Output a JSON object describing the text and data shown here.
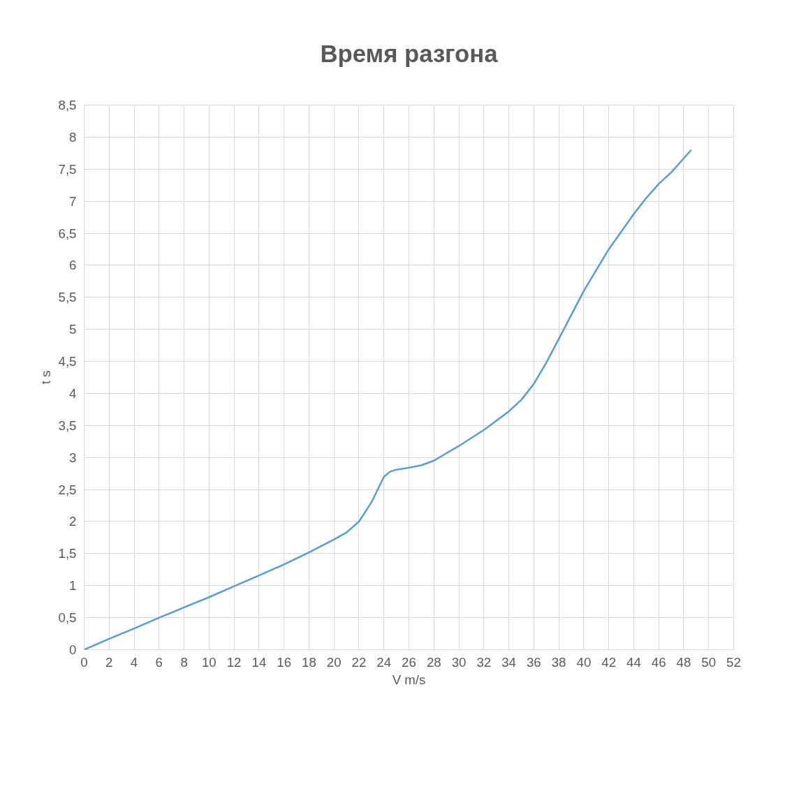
{
  "chart_data": {
    "type": "line",
    "title": "Время разгона",
    "xlabel": "V m/s",
    "ylabel": "t s",
    "x": [
      0,
      2,
      4,
      6,
      8,
      10,
      12,
      14,
      16,
      18,
      20,
      21,
      22,
      23,
      24,
      24.5,
      25,
      26,
      27,
      28,
      30,
      32,
      34,
      35,
      36,
      37,
      38,
      40,
      42,
      44,
      45,
      46,
      47,
      48.6
    ],
    "series": [
      {
        "color": "#5b9bd5",
        "values": [
          0,
          0.17,
          0.33,
          0.5,
          0.66,
          0.82,
          0.99,
          1.16,
          1.33,
          1.52,
          1.72,
          1.83,
          2.0,
          2.3,
          2.7,
          2.78,
          2.81,
          2.84,
          2.88,
          2.95,
          3.18,
          3.43,
          3.72,
          3.9,
          4.15,
          4.48,
          4.85,
          5.6,
          6.25,
          6.8,
          7.05,
          7.27,
          7.45,
          7.8
        ]
      }
    ],
    "xlim": [
      0,
      52
    ],
    "ylim": [
      0,
      8.5
    ],
    "xticks": [
      0,
      2,
      4,
      6,
      8,
      10,
      12,
      14,
      16,
      18,
      20,
      22,
      24,
      26,
      28,
      30,
      32,
      34,
      36,
      38,
      40,
      42,
      44,
      46,
      48,
      50,
      52
    ],
    "yticks": [
      0,
      {
        "value": 0.5,
        "label": "0,5"
      },
      1,
      {
        "value": 1.5,
        "label": "1,5"
      },
      2,
      {
        "value": 2.5,
        "label": "2,5"
      },
      3,
      {
        "value": 3.5,
        "label": "3,5"
      },
      4,
      {
        "value": 4.5,
        "label": "4,5"
      },
      5,
      {
        "value": 5.5,
        "label": "5,5"
      },
      6,
      {
        "value": 6.5,
        "label": "6,5"
      },
      7,
      {
        "value": 7.5,
        "label": "7,5"
      },
      8,
      {
        "value": 8.5,
        "label": "8,5"
      }
    ],
    "grid": true,
    "marker": "none",
    "line_style": "solid"
  }
}
